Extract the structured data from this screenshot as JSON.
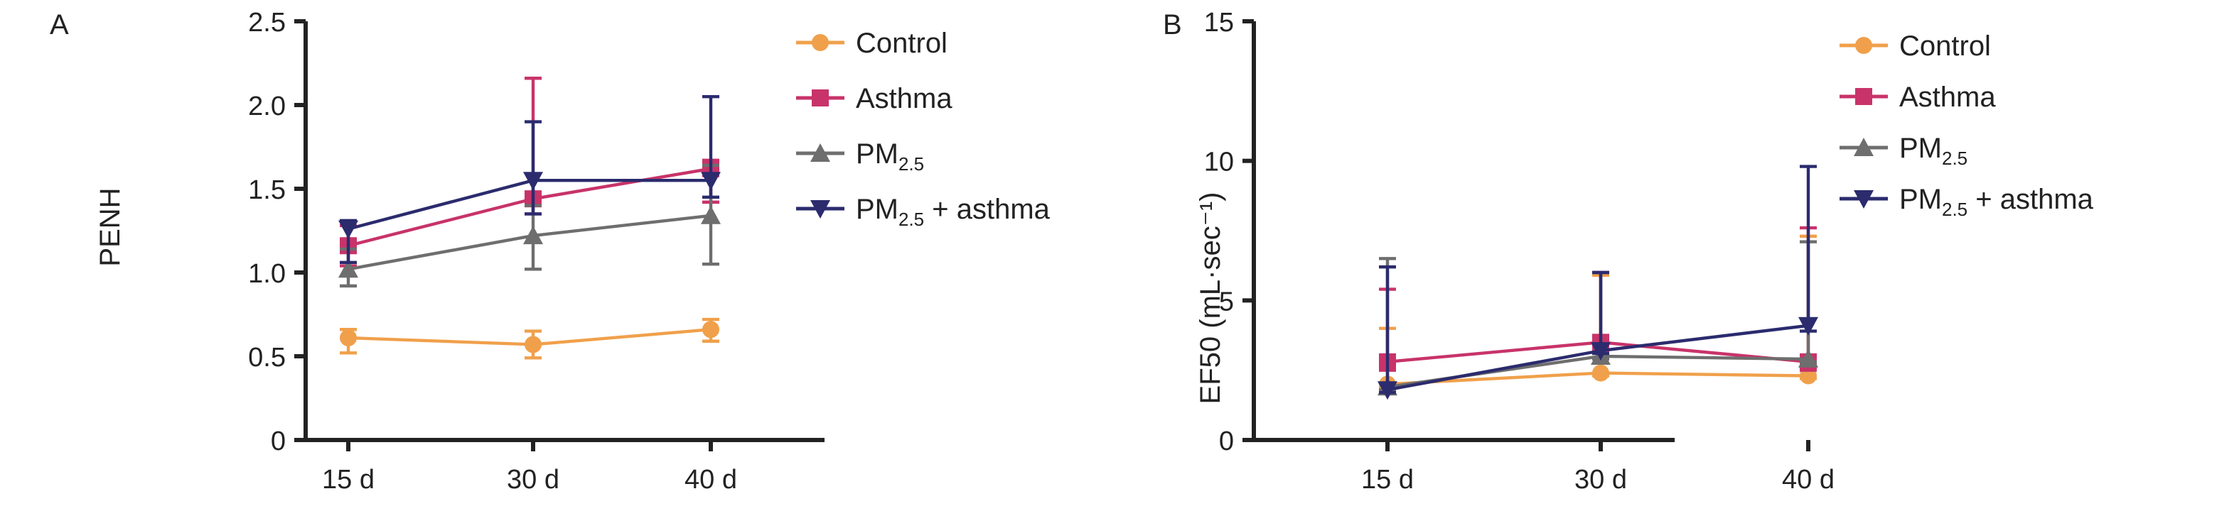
{
  "chart_data": [
    {
      "type": "line",
      "panel_label": "A",
      "ylabel": "PENH",
      "xlabel": "",
      "categories": [
        "15 d",
        "30 d",
        "40 d"
      ],
      "ylim": [
        0,
        2.5
      ],
      "yticks": [
        "0",
        "0.5",
        "1.0",
        "1.5",
        "2.0",
        "2.5"
      ],
      "legend_position": "top-right",
      "series": [
        {
          "name": "Control",
          "name_main": "Control",
          "name_sub": "",
          "name_suffix": "",
          "color": "#F0A04B",
          "marker": "circle",
          "values": [
            0.61,
            0.57,
            0.66
          ],
          "err_low": [
            0.09,
            0.08,
            0.07
          ],
          "err_high": [
            0.05,
            0.08,
            0.06
          ]
        },
        {
          "name": "Asthma",
          "name_main": "Asthma",
          "name_sub": "",
          "name_suffix": "",
          "color": "#C8336A",
          "marker": "square",
          "values": [
            1.16,
            1.44,
            1.62
          ],
          "err_low": [
            0.12,
            0.09,
            0.2
          ],
          "err_high": [
            0.12,
            0.72,
            0.05
          ]
        },
        {
          "name": "PM2.5",
          "name_main": "PM",
          "name_sub": "2.5",
          "name_suffix": "",
          "color": "#6E6E6E",
          "marker": "triangle-up",
          "values": [
            1.02,
            1.22,
            1.34
          ],
          "err_low": [
            0.1,
            0.2,
            0.29
          ],
          "err_high": [
            0.12,
            0.18,
            0.3
          ]
        },
        {
          "name": "PM2.5 + asthma",
          "name_main": "PM",
          "name_sub": "2.5",
          "name_suffix": " + asthma",
          "color": "#2B2B6E",
          "marker": "triangle-down",
          "values": [
            1.26,
            1.55,
            1.55
          ],
          "err_low": [
            0.2,
            0.2,
            0.1
          ],
          "err_high": [
            0.05,
            0.35,
            0.5
          ]
        }
      ]
    },
    {
      "type": "line",
      "panel_label": "B",
      "ylabel": "EF50 (mL·sec⁻¹)",
      "xlabel": "",
      "categories": [
        "15 d",
        "30 d",
        "40 d"
      ],
      "ylim": [
        0,
        15
      ],
      "yticks": [
        "0",
        "5",
        "10",
        "15"
      ],
      "legend_position": "top-right",
      "series": [
        {
          "name": "Control",
          "name_main": "Control",
          "name_sub": "",
          "name_suffix": "",
          "color": "#F0A04B",
          "marker": "circle",
          "values": [
            2.0,
            2.4,
            2.3
          ],
          "err_low": [
            0.1,
            0.1,
            0.1
          ],
          "err_high": [
            2.0,
            3.5,
            5.0
          ]
        },
        {
          "name": "Asthma",
          "name_main": "Asthma",
          "name_sub": "",
          "name_suffix": "",
          "color": "#C8336A",
          "marker": "square",
          "values": [
            2.8,
            3.5,
            2.8
          ],
          "err_low": [
            0.3,
            0.3,
            0.3
          ],
          "err_high": [
            2.6,
            2.5,
            4.8
          ]
        },
        {
          "name": "PM2.5",
          "name_main": "PM",
          "name_sub": "2.5",
          "name_suffix": "",
          "color": "#6E6E6E",
          "marker": "triangle-up",
          "values": [
            1.9,
            3.0,
            2.9
          ],
          "err_low": [
            0.1,
            0.1,
            0.1
          ],
          "err_high": [
            4.6,
            3.0,
            4.2
          ]
        },
        {
          "name": "PM2.5 + asthma",
          "name_main": "PM",
          "name_sub": "2.5",
          "name_suffix": " + asthma",
          "color": "#2B2B6E",
          "marker": "triangle-down",
          "values": [
            1.8,
            3.2,
            4.1
          ],
          "err_low": [
            0.1,
            0.1,
            0.2
          ],
          "err_high": [
            4.4,
            2.8,
            5.7
          ]
        }
      ],
      "series_colors_note_removed": true
    }
  ]
}
